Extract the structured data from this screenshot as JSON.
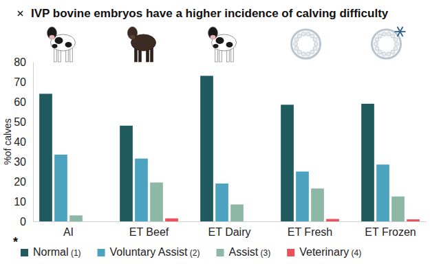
{
  "chart_data": {
    "type": "bar",
    "title": "IVP bovine embryos have a higher incidence of calving difficulty",
    "y_label": "%of calves",
    "annotation": "*",
    "categories": [
      "AI",
      "ET Beef",
      "ET Dairy",
      "ET Fresh",
      "ET Frozen"
    ],
    "series": [
      {
        "name": "Normal (1)",
        "color": "#1f5a5f",
        "values": [
          64,
          48,
          73,
          58.5,
          59
        ]
      },
      {
        "name": "Voluntary Assist (2)",
        "color": "#4ba3bf",
        "values": [
          33.5,
          31.5,
          19,
          25,
          28.5
        ]
      },
      {
        "name": "Assist (3)",
        "color": "#8db8a6",
        "values": [
          3,
          19.5,
          8.5,
          16.5,
          12.5
        ]
      },
      {
        "name": "Veterinary (4)",
        "color": "#e8505b",
        "values": [
          0,
          1.5,
          0,
          1.2,
          1
        ]
      }
    ],
    "ylim": [
      0,
      80
    ],
    "yticks": [
      0,
      10,
      20,
      30,
      40,
      50,
      60,
      70,
      80
    ],
    "grid": false,
    "legend": "bottom"
  }
}
